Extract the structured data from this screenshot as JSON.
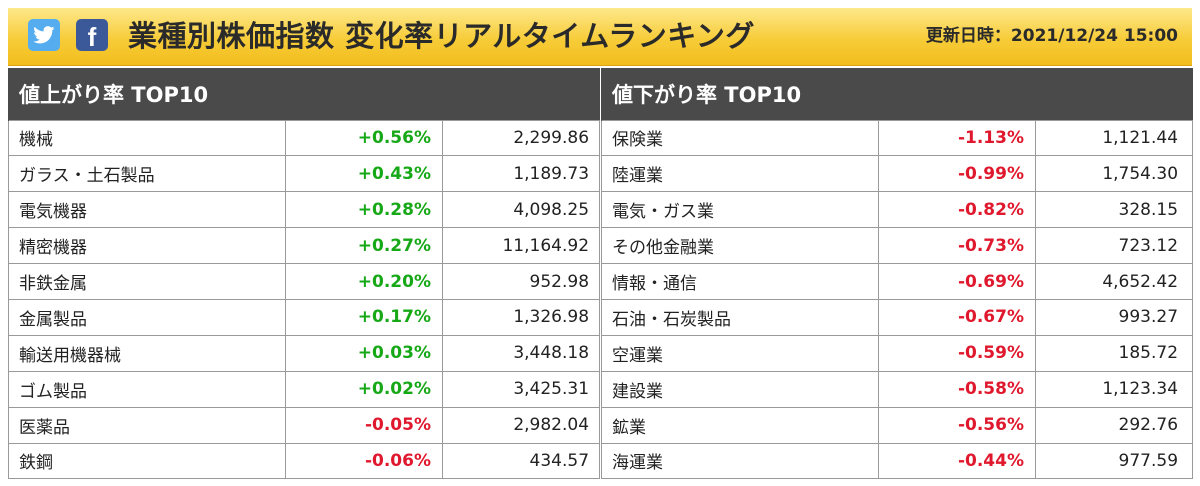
{
  "header": {
    "title": "業種別株価指数 変化率リアルタイムランキング",
    "updated": "更新日時：2021/12/24 15:00",
    "twitter_icon": "twitter-bird-icon",
    "facebook_icon": "facebook-f-icon",
    "colors": {
      "twitter": "#55acee",
      "facebook": "#3b5998",
      "bar": "#f7cc39"
    }
  },
  "gainers": {
    "heading": "値上がり率 TOP10",
    "rows": [
      {
        "name": "機械",
        "change": "+0.56%",
        "value": "2,299.86",
        "dir": "up"
      },
      {
        "name": "ガラス・土石製品",
        "change": "+0.43%",
        "value": "1,189.73",
        "dir": "up"
      },
      {
        "name": "電気機器",
        "change": "+0.28%",
        "value": "4,098.25",
        "dir": "up"
      },
      {
        "name": "精密機器",
        "change": "+0.27%",
        "value": "11,164.92",
        "dir": "up"
      },
      {
        "name": "非鉄金属",
        "change": "+0.20%",
        "value": "952.98",
        "dir": "up"
      },
      {
        "name": "金属製品",
        "change": "+0.17%",
        "value": "1,326.98",
        "dir": "up"
      },
      {
        "name": "輸送用機器械",
        "change": "+0.03%",
        "value": "3,448.18",
        "dir": "up"
      },
      {
        "name": "ゴム製品",
        "change": "+0.02%",
        "value": "3,425.31",
        "dir": "up"
      },
      {
        "name": "医薬品",
        "change": "-0.05%",
        "value": "2,982.04",
        "dir": "down"
      },
      {
        "name": "鉄鋼",
        "change": "-0.06%",
        "value": "434.57",
        "dir": "down"
      }
    ]
  },
  "losers": {
    "heading": "値下がり率 TOP10",
    "rows": [
      {
        "name": "保険業",
        "change": "-1.13%",
        "value": "1,121.44",
        "dir": "down"
      },
      {
        "name": "陸運業",
        "change": "-0.99%",
        "value": "1,754.30",
        "dir": "down"
      },
      {
        "name": "電気・ガス業",
        "change": "-0.82%",
        "value": "328.15",
        "dir": "down"
      },
      {
        "name": "その他金融業",
        "change": "-0.73%",
        "value": "723.12",
        "dir": "down"
      },
      {
        "name": "情報・通信",
        "change": "-0.69%",
        "value": "4,652.42",
        "dir": "down"
      },
      {
        "name": "石油・石炭製品",
        "change": "-0.67%",
        "value": "993.27",
        "dir": "down"
      },
      {
        "name": "空運業",
        "change": "-0.59%",
        "value": "185.72",
        "dir": "down"
      },
      {
        "name": "建設業",
        "change": "-0.58%",
        "value": "1,123.34",
        "dir": "down"
      },
      {
        "name": "鉱業",
        "change": "-0.56%",
        "value": "292.76",
        "dir": "down"
      },
      {
        "name": "海運業",
        "change": "-0.44%",
        "value": "977.59",
        "dir": "down"
      }
    ]
  }
}
